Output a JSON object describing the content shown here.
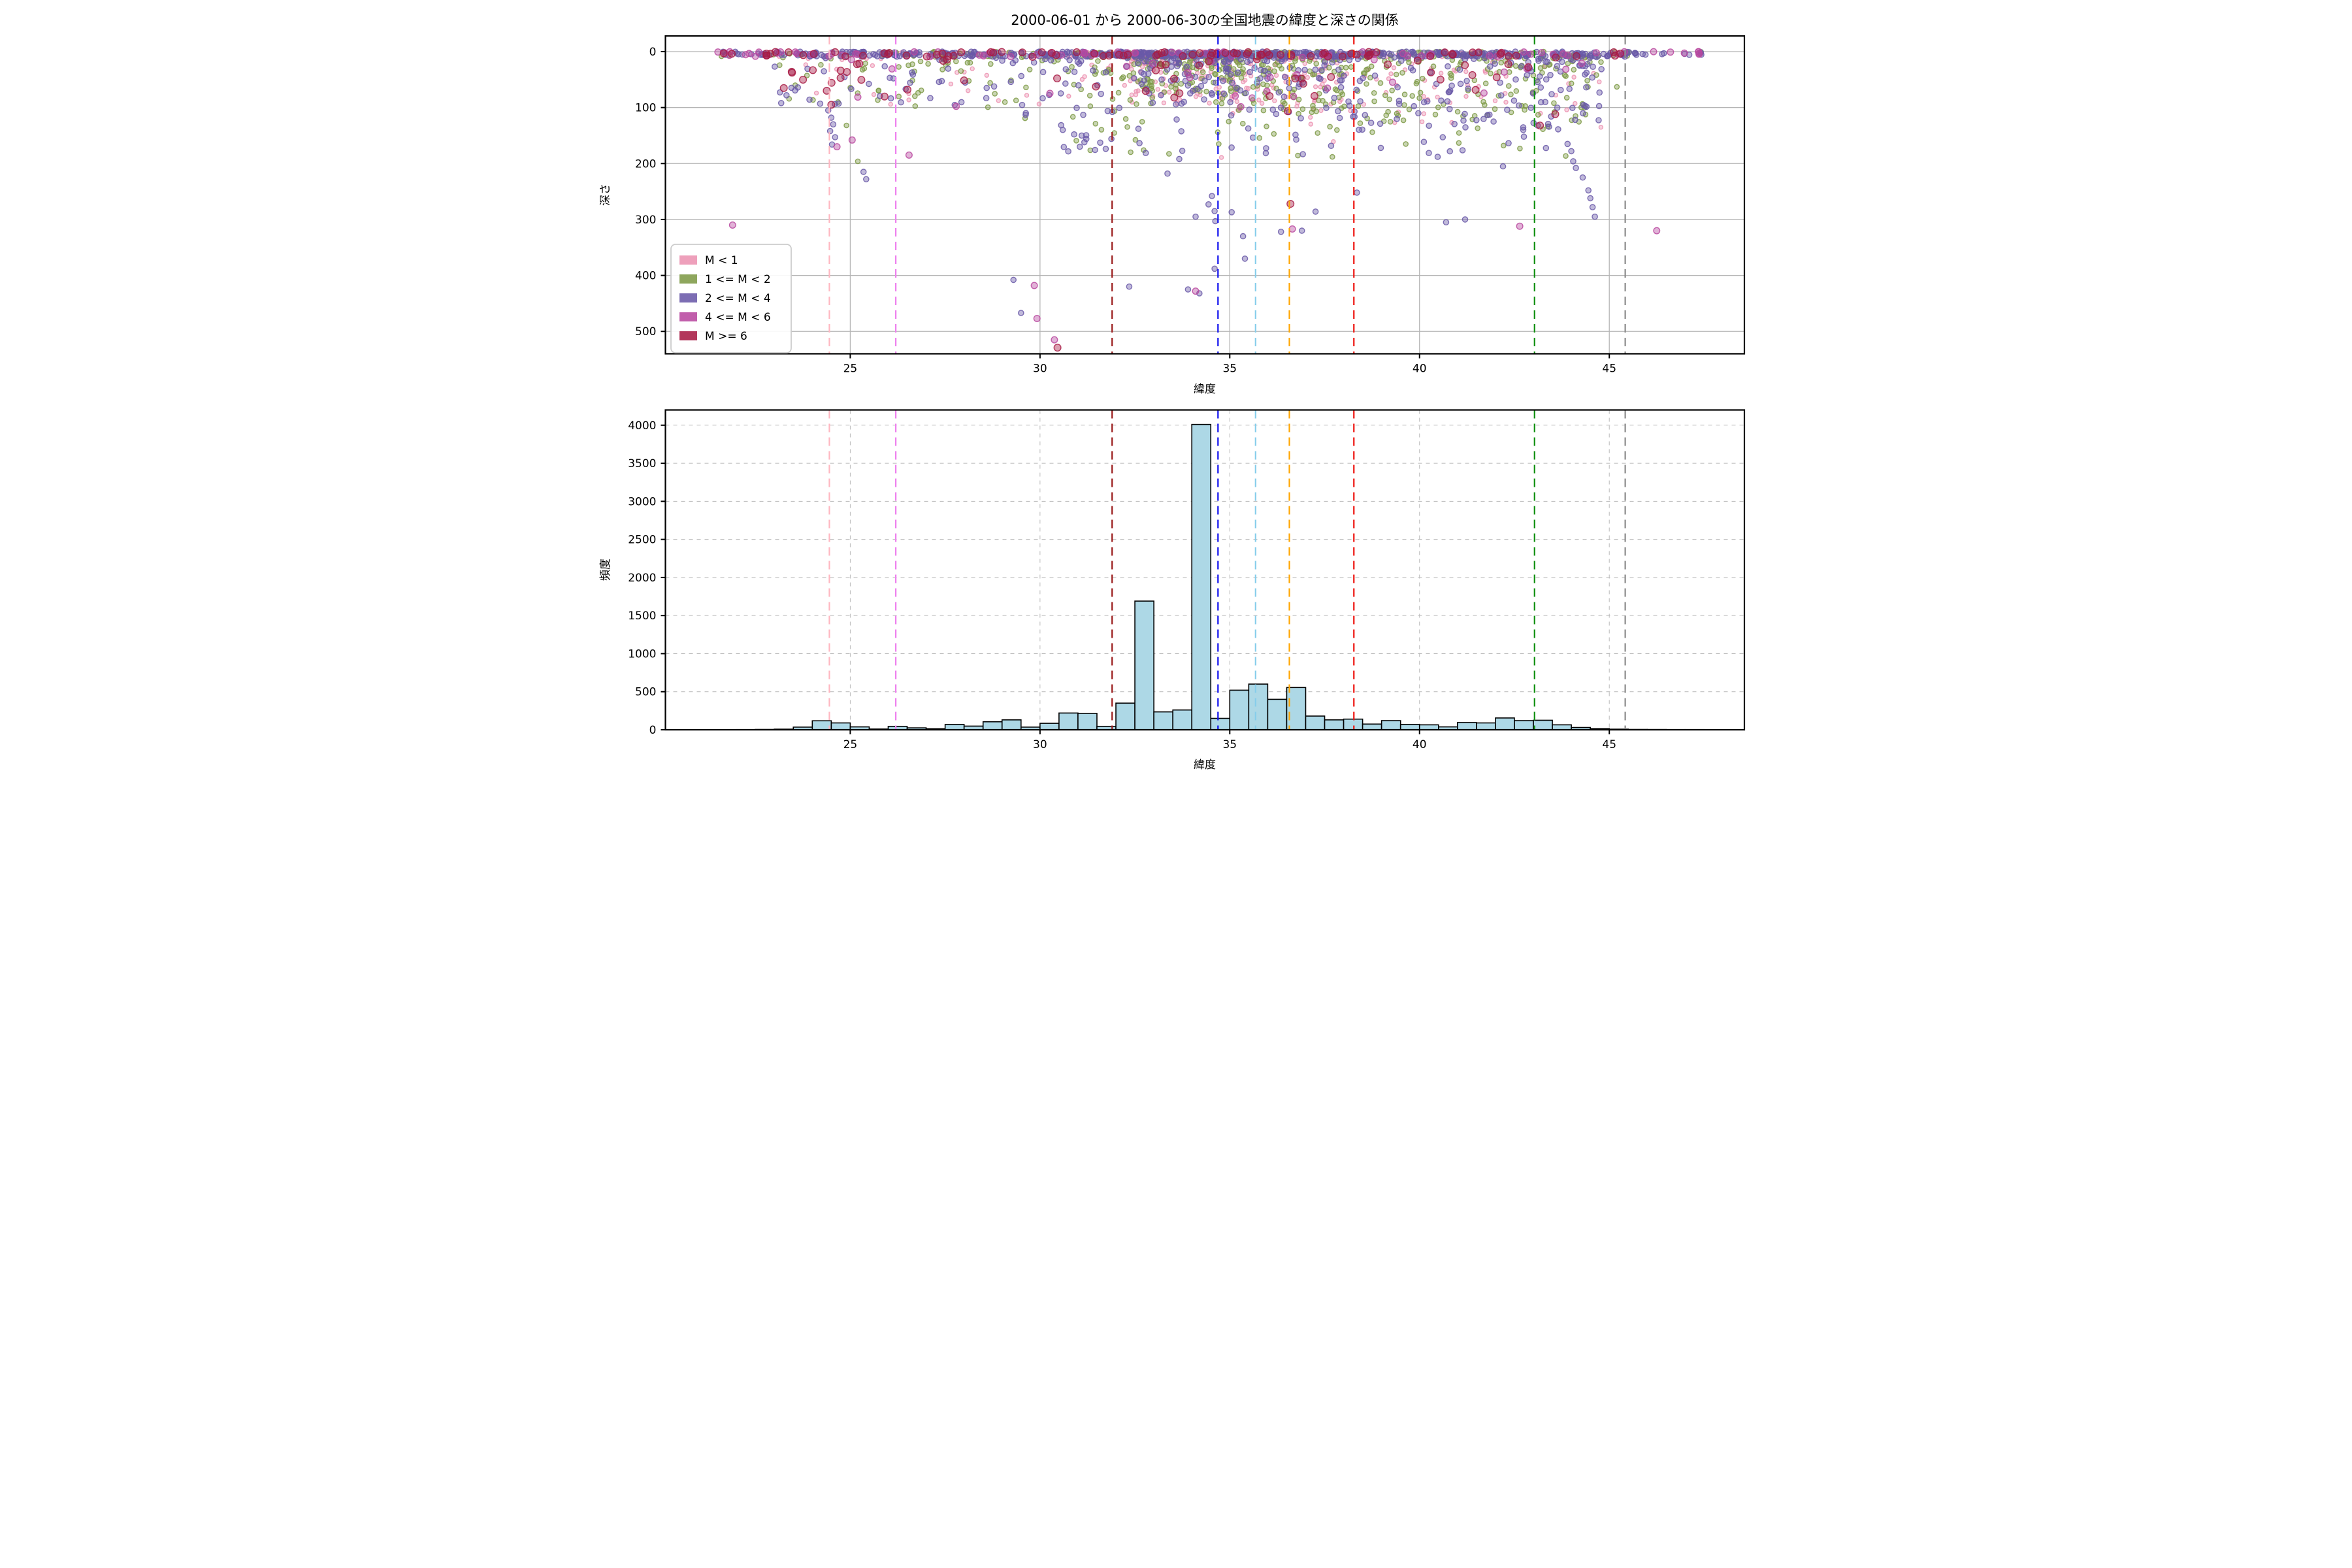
{
  "figure": {
    "title": "2000-06-01 から 2000-06-30の全国地震の緯度と深さの関係",
    "background": "#ffffff"
  },
  "legend": {
    "entries": [
      {
        "key": "m0",
        "label": "M < 1",
        "color": "#ec93b2",
        "radius": 3.0
      },
      {
        "key": "m1",
        "label": "1 <= M < 2",
        "color": "#7e9a47",
        "radius": 3.6
      },
      {
        "key": "m2",
        "label": "2 <= M < 4",
        "color": "#6a59a8",
        "radius": 4.1
      },
      {
        "key": "m4",
        "label": "4 <= M < 6",
        "color": "#b8489f",
        "radius": 4.8
      },
      {
        "key": "m6",
        "label": "M >= 6",
        "color": "#a81b44",
        "radius": 5.3
      }
    ]
  },
  "reference_lines": [
    {
      "lat": 24.45,
      "color": "#ffb6c1"
    },
    {
      "lat": 26.2,
      "color": "#ee82ee"
    },
    {
      "lat": 31.9,
      "color": "#9b1c1c"
    },
    {
      "lat": 34.69,
      "color": "#1010ee"
    },
    {
      "lat": 35.68,
      "color": "#87ceeb"
    },
    {
      "lat": 36.57,
      "color": "#ffa500"
    },
    {
      "lat": 38.27,
      "color": "#ee1510"
    },
    {
      "lat": 43.03,
      "color": "#0f8f0f"
    },
    {
      "lat": 45.42,
      "color": "#8c8c8c"
    }
  ],
  "chart_data": [
    {
      "type": "scatter",
      "title": "2000-06-01 から 2000-06-30の全国地震の緯度と深さの関係",
      "xlabel": "緯度",
      "ylabel": "深さ",
      "xlim": [
        20.13,
        48.56
      ],
      "ylim": [
        -28,
        540
      ],
      "y_inverted": true,
      "xticks": [
        25,
        30,
        35,
        40,
        45
      ],
      "yticks": [
        0,
        100,
        200,
        300,
        400,
        500
      ],
      "grid": "solid",
      "legend_position": "lower-left",
      "seed": 20000601,
      "clusters": [
        {
          "lat": [
            21.4,
            24.2
          ],
          "depth": [
            0,
            9
          ],
          "power": 1.0,
          "counts": {
            "m0": 2,
            "m1": 6,
            "m2": 30,
            "m4": 14,
            "m6": 10
          }
        },
        {
          "lat": [
            24.2,
            31.0
          ],
          "depth": [
            0,
            9
          ],
          "power": 1.0,
          "counts": {
            "m0": 18,
            "m1": 30,
            "m2": 110,
            "m4": 12,
            "m6": 20
          }
        },
        {
          "lat": [
            31.0,
            36.2
          ],
          "depth": [
            0,
            9
          ],
          "power": 1.0,
          "counts": {
            "m0": 35,
            "m1": 45,
            "m2": 170,
            "m4": 14,
            "m6": 24
          }
        },
        {
          "lat": [
            36.2,
            41.0
          ],
          "depth": [
            0,
            9
          ],
          "power": 1.0,
          "counts": {
            "m0": 18,
            "m1": 35,
            "m2": 100,
            "m4": 10,
            "m6": 16
          }
        },
        {
          "lat": [
            41.0,
            45.5
          ],
          "depth": [
            0,
            9
          ],
          "power": 1.0,
          "counts": {
            "m0": 6,
            "m1": 25,
            "m2": 80,
            "m4": 12,
            "m6": 8
          }
        },
        {
          "lat": [
            45.5,
            47.5
          ],
          "depth": [
            0,
            6
          ],
          "power": 1.0,
          "counts": {
            "m0": 0,
            "m1": 2,
            "m2": 14,
            "m4": 7,
            "m6": 0
          }
        },
        {
          "lat": [
            23.0,
            25.3
          ],
          "depth": [
            8,
            95
          ],
          "power": 1.7,
          "counts": {
            "m0": 5,
            "m1": 10,
            "m2": 16,
            "m4": 3,
            "m6": 12
          }
        },
        {
          "lat": [
            25.3,
            29.5
          ],
          "depth": [
            8,
            100
          ],
          "power": 1.7,
          "counts": {
            "m0": 16,
            "m1": 40,
            "m2": 30,
            "m4": 4,
            "m6": 5
          }
        },
        {
          "lat": [
            29.5,
            32.3
          ],
          "depth": [
            8,
            120
          ],
          "power": 1.7,
          "counts": {
            "m0": 10,
            "m1": 30,
            "m2": 30,
            "m4": 2,
            "m6": 3
          }
        },
        {
          "lat": [
            32.3,
            35.2
          ],
          "depth": [
            8,
            95
          ],
          "power": 1.7,
          "counts": {
            "m0": 110,
            "m1": 120,
            "m2": 85,
            "m4": 6,
            "m6": 10
          }
        },
        {
          "lat": [
            35.2,
            38.2
          ],
          "depth": [
            8,
            110
          ],
          "power": 1.7,
          "counts": {
            "m0": 80,
            "m1": 95,
            "m2": 70,
            "m4": 8,
            "m6": 10
          }
        },
        {
          "lat": [
            38.2,
            42.7
          ],
          "depth": [
            8,
            130
          ],
          "power": 1.7,
          "counts": {
            "m0": 45,
            "m1": 85,
            "m2": 60,
            "m4": 4,
            "m6": 12
          }
        },
        {
          "lat": [
            42.6,
            44.8
          ],
          "depth": [
            8,
            140
          ],
          "power": 1.7,
          "counts": {
            "m0": 12,
            "m1": 45,
            "m2": 65,
            "m4": 3,
            "m6": 5
          }
        },
        {
          "lat": [
            30.5,
            34.5
          ],
          "depth": [
            100,
            185
          ],
          "power": 1.2,
          "counts": {
            "m1": 12,
            "m2": 18
          }
        },
        {
          "lat": [
            34.5,
            38.0
          ],
          "depth": [
            100,
            190
          ],
          "power": 1.2,
          "counts": {
            "m0": 6,
            "m1": 14,
            "m2": 16
          }
        },
        {
          "lat": [
            38.0,
            44.5
          ],
          "depth": [
            100,
            190
          ],
          "power": 1.2,
          "counts": {
            "m1": 18,
            "m2": 22
          }
        }
      ],
      "outliers": [
        [
          21.9,
          310,
          "m4"
        ],
        [
          23.25,
          65,
          "m6"
        ],
        [
          23.32,
          78,
          "m2"
        ],
        [
          23.18,
          92,
          "m2"
        ],
        [
          23.55,
          60,
          "m1"
        ],
        [
          23.62,
          64,
          "m2"
        ],
        [
          24.38,
          70,
          "m6"
        ],
        [
          24.5,
          95,
          "m6"
        ],
        [
          24.42,
          105,
          "m2"
        ],
        [
          24.5,
          118,
          "m2"
        ],
        [
          24.55,
          130,
          "m2"
        ],
        [
          24.47,
          142,
          "m2"
        ],
        [
          24.6,
          153,
          "m2"
        ],
        [
          24.52,
          166,
          "m2"
        ],
        [
          24.65,
          170,
          "m4"
        ],
        [
          24.9,
          132,
          "m1"
        ],
        [
          25.05,
          158,
          "m4"
        ],
        [
          25.2,
          196,
          "m1"
        ],
        [
          25.35,
          215,
          "m2"
        ],
        [
          25.42,
          228,
          "m2"
        ],
        [
          26.55,
          185,
          "m4"
        ],
        [
          29.3,
          408,
          "m2"
        ],
        [
          29.5,
          467,
          "m2"
        ],
        [
          29.85,
          418,
          "m4"
        ],
        [
          29.92,
          477,
          "m4"
        ],
        [
          30.38,
          515,
          "m4"
        ],
        [
          30.46,
          529,
          "m6"
        ],
        [
          30.6,
          140,
          "m2"
        ],
        [
          30.9,
          148,
          "m2"
        ],
        [
          31.05,
          170,
          "m2"
        ],
        [
          31.1,
          150,
          "m2"
        ],
        [
          31.17,
          162,
          "m2"
        ],
        [
          31.22,
          156,
          "m2"
        ],
        [
          32.35,
          420,
          "m2"
        ],
        [
          33.36,
          218,
          "m2"
        ],
        [
          33.67,
          192,
          "m2"
        ],
        [
          33.9,
          425,
          "m2"
        ],
        [
          34.1,
          428,
          "m4"
        ],
        [
          34.2,
          432,
          "m2"
        ],
        [
          34.1,
          295,
          "m2"
        ],
        [
          34.44,
          273,
          "m2"
        ],
        [
          34.53,
          258,
          "m2"
        ],
        [
          34.6,
          285,
          "m2"
        ],
        [
          34.62,
          303,
          "m2"
        ],
        [
          35.05,
          287,
          "m2"
        ],
        [
          34.6,
          388,
          "m2"
        ],
        [
          35.4,
          370,
          "m2"
        ],
        [
          35.35,
          330,
          "m2"
        ],
        [
          36.6,
          272,
          "m6"
        ],
        [
          36.35,
          322,
          "m2"
        ],
        [
          36.65,
          317,
          "m4"
        ],
        [
          36.9,
          320,
          "m2"
        ],
        [
          37.26,
          286,
          "m2"
        ],
        [
          38.35,
          252,
          "m2"
        ],
        [
          40.7,
          305,
          "m2"
        ],
        [
          41.2,
          300,
          "m2"
        ],
        [
          42.2,
          205,
          "m2"
        ],
        [
          42.64,
          312,
          "m4"
        ],
        [
          43.9,
          165,
          "m2"
        ],
        [
          44.0,
          178,
          "m2"
        ],
        [
          44.05,
          196,
          "m2"
        ],
        [
          44.12,
          208,
          "m2"
        ],
        [
          44.3,
          225,
          "m2"
        ],
        [
          44.45,
          248,
          "m2"
        ],
        [
          44.5,
          262,
          "m2"
        ],
        [
          44.56,
          278,
          "m2"
        ],
        [
          44.62,
          295,
          "m2"
        ],
        [
          45.2,
          63,
          "m1"
        ],
        [
          46.25,
          320,
          "m4"
        ]
      ]
    },
    {
      "type": "histogram",
      "xlabel": "緯度",
      "ylabel": "頻度",
      "xlim": [
        20.13,
        48.56
      ],
      "ylim": [
        0,
        4200
      ],
      "xticks": [
        25,
        30,
        35,
        40,
        45
      ],
      "yticks": [
        0,
        500,
        1000,
        1500,
        2000,
        2500,
        3000,
        3500,
        4000
      ],
      "grid": "dashed",
      "bin_start": 22.0,
      "bin_width": 0.5,
      "counts": [
        2,
        4,
        8,
        35,
        118,
        90,
        38,
        10,
        45,
        25,
        14,
        70,
        48,
        105,
        130,
        35,
        85,
        220,
        215,
        45,
        350,
        1690,
        235,
        260,
        4010,
        150,
        520,
        600,
        400,
        555,
        180,
        130,
        140,
        75,
        120,
        70,
        65,
        38,
        95,
        90,
        155,
        120,
        125,
        65,
        30,
        15,
        8,
        4,
        3,
        2,
        2
      ],
      "bar_color": "#add8e6",
      "bar_edge": "#000000"
    }
  ]
}
